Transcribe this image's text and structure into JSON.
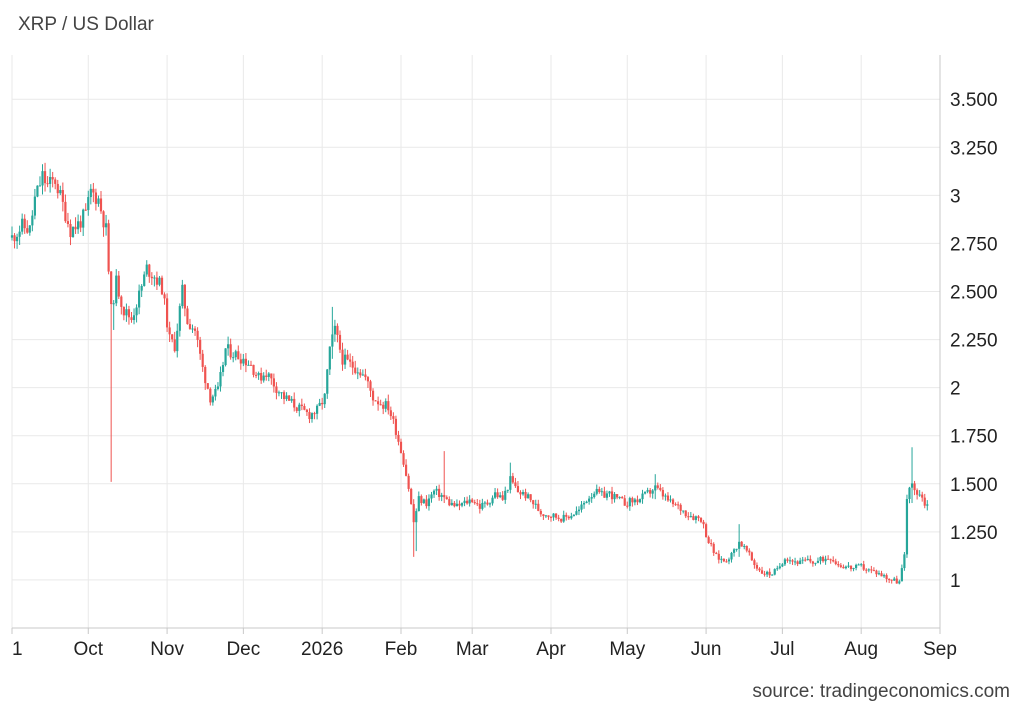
{
  "title": "XRP / US Dollar",
  "source": "source: tradingeconomics.com",
  "colors": {
    "up": "#26a69a",
    "down": "#ef5350",
    "grid": "#e9e9e9",
    "axis": "#c8c8c8"
  },
  "chart_data": {
    "type": "candlestick",
    "title": "XRP / US Dollar",
    "ylim": [
      0.75,
      3.73
    ],
    "yticks": [
      {
        "value": 3.5,
        "label": "3.500"
      },
      {
        "value": 3.25,
        "label": "3.250"
      },
      {
        "value": 3.0,
        "label": "3"
      },
      {
        "value": 2.75,
        "label": "2.750"
      },
      {
        "value": 2.5,
        "label": "2.500"
      },
      {
        "value": 2.25,
        "label": "2.250"
      },
      {
        "value": 2.0,
        "label": "2"
      },
      {
        "value": 1.75,
        "label": "1.750"
      },
      {
        "value": 1.5,
        "label": "1.500"
      },
      {
        "value": 1.25,
        "label": "1.250"
      },
      {
        "value": 1.0,
        "label": "1"
      }
    ],
    "xticks": [
      {
        "date": "2025-09-01",
        "label": "1"
      },
      {
        "date": "2025-10-01",
        "label": "Oct"
      },
      {
        "date": "2025-11-01",
        "label": "Nov"
      },
      {
        "date": "2025-12-01",
        "label": "Dec"
      },
      {
        "date": "2026-01-01",
        "label": "2026"
      },
      {
        "date": "2026-02-01",
        "label": "Feb"
      },
      {
        "date": "2026-03-01",
        "label": "Mar"
      },
      {
        "date": "2026-04-01",
        "label": "Apr"
      },
      {
        "date": "2026-05-01",
        "label": "May"
      },
      {
        "date": "2026-06-01",
        "label": "Jun"
      },
      {
        "date": "2026-07-01",
        "label": "Jul"
      },
      {
        "date": "2026-08-01",
        "label": "Aug"
      },
      {
        "date": "2026-09-01",
        "label": "Sep"
      }
    ],
    "xlim": [
      "2025-09-01",
      "2026-09-01"
    ],
    "grid": true,
    "close_path": [
      [
        "2025-09-01",
        2.78
      ],
      [
        "2025-09-05",
        2.84
      ],
      [
        "2025-09-08",
        2.82
      ],
      [
        "2025-09-10",
        2.98
      ],
      [
        "2025-09-13",
        3.1
      ],
      [
        "2025-09-15",
        3.05
      ],
      [
        "2025-09-18",
        3.08
      ],
      [
        "2025-09-21",
        2.95
      ],
      [
        "2025-09-24",
        2.82
      ],
      [
        "2025-09-27",
        2.85
      ],
      [
        "2025-09-30",
        2.9
      ],
      [
        "2025-10-02",
        3.02
      ],
      [
        "2025-10-05",
        2.98
      ],
      [
        "2025-10-08",
        2.82
      ],
      [
        "2025-10-10",
        2.4
      ],
      [
        "2025-10-12",
        2.55
      ],
      [
        "2025-10-15",
        2.4
      ],
      [
        "2025-10-18",
        2.36
      ],
      [
        "2025-10-21",
        2.48
      ],
      [
        "2025-10-24",
        2.62
      ],
      [
        "2025-10-27",
        2.58
      ],
      [
        "2025-10-30",
        2.52
      ],
      [
        "2025-11-02",
        2.25
      ],
      [
        "2025-11-04",
        2.22
      ],
      [
        "2025-11-07",
        2.5
      ],
      [
        "2025-11-09",
        2.35
      ],
      [
        "2025-11-12",
        2.3
      ],
      [
        "2025-11-15",
        2.1
      ],
      [
        "2025-11-18",
        1.95
      ],
      [
        "2025-11-21",
        1.98
      ],
      [
        "2025-11-24",
        2.2
      ],
      [
        "2025-11-27",
        2.18
      ],
      [
        "2025-12-01",
        2.15
      ],
      [
        "2025-12-04",
        2.12
      ],
      [
        "2025-12-07",
        2.05
      ],
      [
        "2025-12-10",
        2.08
      ],
      [
        "2025-12-14",
        2.0
      ],
      [
        "2025-12-17",
        1.95
      ],
      [
        "2025-12-20",
        1.92
      ],
      [
        "2025-12-24",
        1.88
      ],
      [
        "2025-12-27",
        1.86
      ],
      [
        "2025-12-30",
        1.88
      ],
      [
        "2026-01-02",
        1.95
      ],
      [
        "2026-01-04",
        2.2
      ],
      [
        "2026-01-06",
        2.3
      ],
      [
        "2026-01-09",
        2.15
      ],
      [
        "2026-01-12",
        2.12
      ],
      [
        "2026-01-15",
        2.1
      ],
      [
        "2026-01-18",
        2.05
      ],
      [
        "2026-01-21",
        1.95
      ],
      [
        "2026-01-24",
        1.92
      ],
      [
        "2026-01-27",
        1.9
      ],
      [
        "2026-01-30",
        1.78
      ],
      [
        "2026-02-02",
        1.62
      ],
      [
        "2026-02-04",
        1.48
      ],
      [
        "2026-02-06",
        1.3
      ],
      [
        "2026-02-08",
        1.42
      ],
      [
        "2026-02-11",
        1.4
      ],
      [
        "2026-02-14",
        1.46
      ],
      [
        "2026-02-17",
        1.44
      ],
      [
        "2026-02-20",
        1.4
      ],
      [
        "2026-02-23",
        1.38
      ],
      [
        "2026-02-26",
        1.4
      ],
      [
        "2026-03-01",
        1.42
      ],
      [
        "2026-03-04",
        1.38
      ],
      [
        "2026-03-07",
        1.4
      ],
      [
        "2026-03-10",
        1.45
      ],
      [
        "2026-03-13",
        1.42
      ],
      [
        "2026-03-16",
        1.52
      ],
      [
        "2026-03-19",
        1.46
      ],
      [
        "2026-03-22",
        1.44
      ],
      [
        "2026-03-25",
        1.4
      ],
      [
        "2026-03-28",
        1.35
      ],
      [
        "2026-03-31",
        1.34
      ],
      [
        "2026-04-03",
        1.33
      ],
      [
        "2026-04-06",
        1.32
      ],
      [
        "2026-04-09",
        1.34
      ],
      [
        "2026-04-12",
        1.36
      ],
      [
        "2026-04-15",
        1.42
      ],
      [
        "2026-04-18",
        1.46
      ],
      [
        "2026-04-21",
        1.44
      ],
      [
        "2026-04-24",
        1.45
      ],
      [
        "2026-04-27",
        1.42
      ],
      [
        "2026-04-30",
        1.4
      ],
      [
        "2026-05-03",
        1.41
      ],
      [
        "2026-05-06",
        1.42
      ],
      [
        "2026-05-09",
        1.45
      ],
      [
        "2026-05-12",
        1.48
      ],
      [
        "2026-05-15",
        1.44
      ],
      [
        "2026-05-18",
        1.4
      ],
      [
        "2026-05-21",
        1.38
      ],
      [
        "2026-05-24",
        1.35
      ],
      [
        "2026-05-27",
        1.33
      ],
      [
        "2026-05-30",
        1.32
      ],
      [
        "2026-06-02",
        1.2
      ],
      [
        "2026-06-05",
        1.12
      ],
      [
        "2026-06-08",
        1.1
      ],
      [
        "2026-06-11",
        1.13
      ],
      [
        "2026-06-14",
        1.2
      ],
      [
        "2026-06-17",
        1.15
      ],
      [
        "2026-06-20",
        1.08
      ],
      [
        "2026-06-23",
        1.04
      ],
      [
        "2026-06-26",
        1.03
      ],
      [
        "2026-06-29",
        1.05
      ],
      [
        "2026-07-02",
        1.12
      ],
      [
        "2026-07-05",
        1.1
      ],
      [
        "2026-07-08",
        1.09
      ],
      [
        "2026-07-11",
        1.1
      ],
      [
        "2026-07-14",
        1.09
      ],
      [
        "2026-07-17",
        1.11
      ],
      [
        "2026-07-20",
        1.12
      ],
      [
        "2026-07-23",
        1.08
      ],
      [
        "2026-07-26",
        1.07
      ],
      [
        "2026-07-29",
        1.06
      ],
      [
        "2026-08-01",
        1.07
      ],
      [
        "2026-08-04",
        1.05
      ],
      [
        "2026-08-07",
        1.04
      ],
      [
        "2026-08-10",
        1.02
      ],
      [
        "2026-08-13",
        1.0
      ],
      [
        "2026-08-16",
        0.99
      ],
      [
        "2026-08-18",
        1.12
      ],
      [
        "2026-08-19",
        1.42
      ],
      [
        "2026-08-20",
        1.5
      ],
      [
        "2026-08-22",
        1.47
      ],
      [
        "2026-08-24",
        1.45
      ],
      [
        "2026-08-26",
        1.4
      ],
      [
        "2026-08-27",
        1.39
      ]
    ],
    "spikes": [
      {
        "date": "2025-10-10",
        "low": 1.51,
        "high": 2.5
      },
      {
        "date": "2025-10-11",
        "low": 2.3,
        "high": 2.45
      },
      {
        "date": "2026-02-06",
        "low": 1.12,
        "high": 1.42
      },
      {
        "date": "2026-02-07",
        "low": 1.15,
        "high": 1.35
      },
      {
        "date": "2026-02-18",
        "low": 1.4,
        "high": 1.67
      },
      {
        "date": "2026-03-16",
        "low": 1.45,
        "high": 1.61
      },
      {
        "date": "2026-05-12",
        "low": 1.42,
        "high": 1.55
      },
      {
        "date": "2026-06-14",
        "low": 1.12,
        "high": 1.29
      },
      {
        "date": "2026-08-21",
        "low": 1.4,
        "high": 1.69
      },
      {
        "date": "2026-01-05",
        "low": 2.15,
        "high": 2.42
      }
    ]
  }
}
